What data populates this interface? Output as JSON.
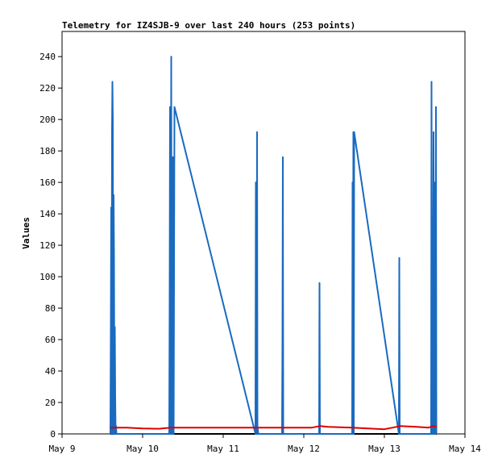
{
  "chart_data": {
    "type": "line",
    "title": "Telemetry for IZ4SJB-9 over last 240 hours (253 points)",
    "xlabel": "",
    "ylabel": "Values",
    "x_tick_labels": [
      "May 9",
      "May 10",
      "May 11",
      "May 12",
      "May 13",
      "May 14"
    ],
    "x_ticks": [
      9,
      10,
      11,
      12,
      13,
      14
    ],
    "xlim": [
      9,
      14
    ],
    "y_ticks": [
      0,
      20,
      40,
      60,
      80,
      100,
      120,
      140,
      160,
      180,
      200,
      220,
      240
    ],
    "ylim": [
      0,
      256
    ],
    "grid": false,
    "legend": "none",
    "series": [
      {
        "color": "#1a6ac0",
        "x": [
          9.6,
          9.605,
          9.61,
          9.615,
          9.62,
          9.625,
          9.63,
          9.635,
          9.64,
          9.645,
          9.65,
          9.655,
          9.66,
          9.665,
          9.67,
          9.675,
          10.33,
          10.335,
          10.34,
          10.345,
          10.35,
          10.355,
          10.36,
          10.365,
          10.37,
          10.375,
          10.38,
          10.385,
          10.39,
          10.395,
          11.4,
          11.405,
          11.41,
          11.415,
          11.42,
          11.425,
          11.43,
          11.435,
          11.73,
          11.735,
          11.74,
          11.745,
          12.19,
          12.195,
          12.2,
          12.6,
          12.605,
          12.61,
          12.615,
          12.62,
          12.625,
          13.18,
          13.185,
          13.19,
          13.58,
          13.585,
          13.59,
          13.595,
          13.6,
          13.61,
          13.615,
          13.62,
          13.625,
          13.63,
          13.635,
          13.64,
          13.645
        ],
        "values": [
          0,
          64,
          144,
          0,
          192,
          224,
          200,
          0,
          152,
          112,
          0,
          68,
          22,
          0,
          5,
          0,
          0,
          80,
          208,
          0,
          104,
          240,
          0,
          176,
          0,
          120,
          176,
          0,
          104,
          208,
          0,
          160,
          0,
          48,
          192,
          0,
          3,
          0,
          0,
          56,
          176,
          0,
          0,
          96,
          0,
          0,
          160,
          0,
          192,
          0,
          192,
          0,
          112,
          0,
          0,
          224,
          0,
          3,
          0,
          192,
          0,
          160,
          0,
          80,
          0,
          208,
          0
        ]
      },
      {
        "color": "#dd0000",
        "x": [
          9.6,
          9.8,
          10.0,
          10.2,
          10.35,
          10.6,
          11.0,
          11.4,
          11.8,
          12.1,
          12.2,
          12.3,
          12.6,
          12.8,
          13.0,
          13.2,
          13.4,
          13.55,
          13.6,
          13.65
        ],
        "values": [
          4,
          4,
          3.5,
          3.3,
          4,
          4,
          4,
          4,
          4,
          4,
          5,
          4.5,
          4,
          3.5,
          3,
          5,
          4.5,
          4,
          5,
          4.5
        ]
      }
    ]
  }
}
